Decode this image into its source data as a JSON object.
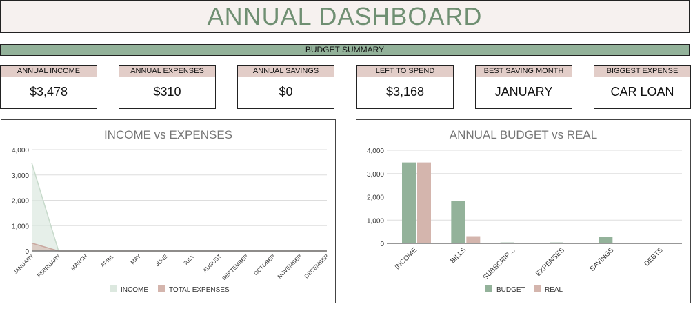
{
  "title": "ANNUAL DASHBOARD",
  "summary_label": "BUDGET SUMMARY",
  "cards": [
    {
      "label": "ANNUAL INCOME",
      "value": "$3,478"
    },
    {
      "label": "ANNUAL EXPENSES",
      "value": "$310"
    },
    {
      "label": "ANNUAL SAVINGS",
      "value": "$0"
    },
    {
      "label": "LEFT TO SPEND",
      "value": "$3,168"
    },
    {
      "label": "BEST SAVING MONTH",
      "value": "JANUARY"
    },
    {
      "label": "BIGGEST EXPENSE",
      "value": "CAR LOAN"
    }
  ],
  "colors": {
    "green": "#93b29a",
    "pink": "#d4b5ad",
    "light_green": "#dce8df"
  },
  "chart_data": [
    {
      "type": "area",
      "title": "INCOME vs EXPENSES",
      "categories": [
        "JANUARY",
        "FEBRUARY",
        "MARCH",
        "APRIL",
        "MAY",
        "JUNE",
        "JULY",
        "AUGUST",
        "SEPTEMBER",
        "OCTOBER",
        "NOVEMBER",
        "DECEMBER"
      ],
      "series": [
        {
          "name": "INCOME",
          "values": [
            3478,
            0,
            0,
            0,
            0,
            0,
            0,
            0,
            0,
            0,
            0,
            0
          ]
        },
        {
          "name": "TOTAL EXPENSES",
          "values": [
            310,
            0,
            0,
            0,
            0,
            0,
            0,
            0,
            0,
            0,
            0,
            0
          ]
        }
      ],
      "yticks": [
        "0",
        "1,000",
        "2,000",
        "3,000",
        "4,000"
      ],
      "ylim": [
        0,
        4000
      ],
      "grid": true,
      "legend": "bottom"
    },
    {
      "type": "bar",
      "title": "ANNUAL BUDGET vs REAL",
      "categories": [
        "INCOME",
        "BILLS",
        "SUBSCRIP…",
        "EXPENSES",
        "SAVINGS",
        "DEBTS"
      ],
      "series": [
        {
          "name": "BUDGET",
          "values": [
            3478,
            1830,
            40,
            40,
            280,
            0
          ]
        },
        {
          "name": "REAL",
          "values": [
            3478,
            310,
            0,
            0,
            0,
            0
          ]
        }
      ],
      "yticks": [
        "0",
        "1,000",
        "2,000",
        "3,000",
        "4,000"
      ],
      "ylim": [
        0,
        4000
      ],
      "grid": true,
      "legend": "bottom"
    }
  ]
}
